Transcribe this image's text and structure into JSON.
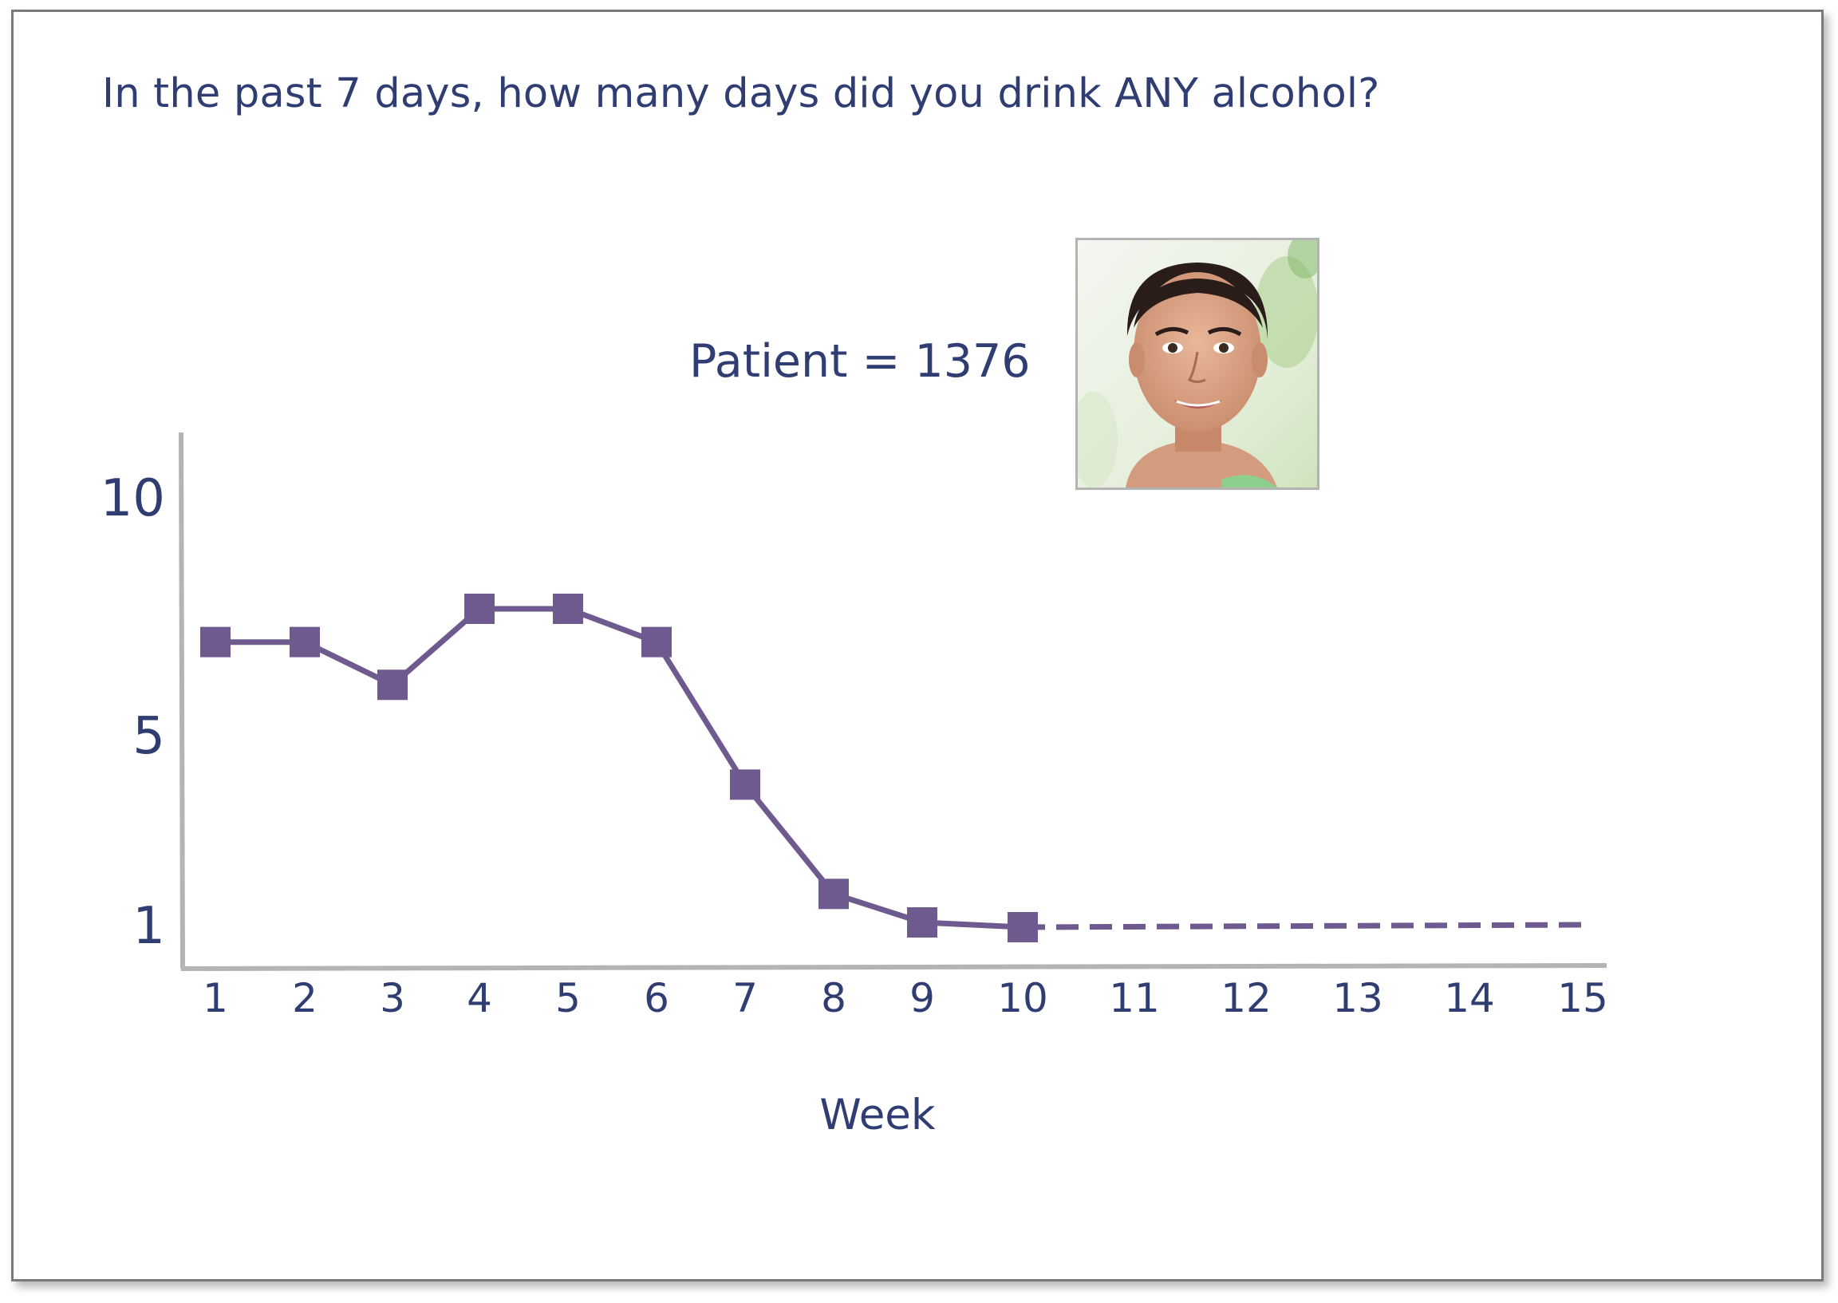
{
  "question": "In the past 7 days, how many days did you drink ANY alcohol?",
  "patient_label": "Patient = 1376",
  "colors": {
    "text": "#2f3d73",
    "series": "#6e5a8e",
    "axis": "#b4b4b4"
  },
  "chart_data": {
    "type": "line",
    "title": "",
    "xlabel": "Week",
    "ylabel": "",
    "x_ticks": [
      "1",
      "2",
      "3",
      "4",
      "5",
      "6",
      "7",
      "8",
      "9",
      "10",
      "11",
      "12",
      "13",
      "14",
      "15"
    ],
    "y_ticks": [
      "1",
      "5",
      "10"
    ],
    "ylim": [
      0,
      12
    ],
    "series": [
      {
        "style": "solid-with-square-markers",
        "x": [
          1,
          2,
          3,
          4,
          5,
          6,
          7,
          8,
          9,
          10
        ],
        "y": [
          7,
          7,
          6.1,
          7.7,
          7.7,
          7,
          4,
          1.7,
          1.1,
          1
        ]
      },
      {
        "style": "dashed",
        "x": [
          10,
          15
        ],
        "y": [
          1,
          1.05
        ]
      }
    ]
  }
}
